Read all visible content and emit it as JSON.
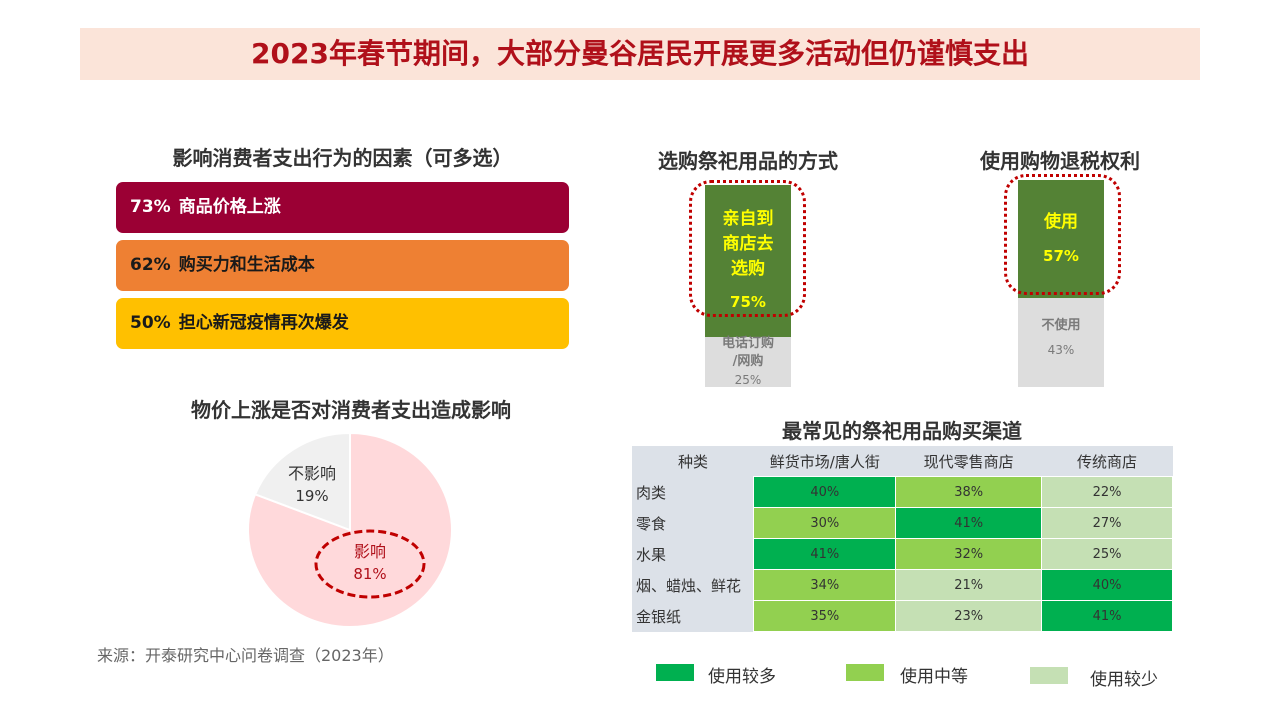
{
  "title": "2023年春节期间，大部分曼谷居民开展更多活动但仍谨慎支出",
  "factors": {
    "title": "影响消费者支出行为的因素（可多选）",
    "items": [
      {
        "pct": "73%",
        "label": "商品价格上涨",
        "color": "#9b0034"
      },
      {
        "pct": "62%",
        "label": "购买力和生活成本",
        "color": "#ee8033"
      },
      {
        "pct": "50%",
        "label": "担心新冠疫情再次爆发",
        "color": "#ffc000"
      }
    ]
  },
  "pie": {
    "title": "物价上涨是否对消费者支出造成影响",
    "slices": [
      {
        "label": "影响",
        "value_label": "81%",
        "value": 81,
        "color": "#ffd9db"
      },
      {
        "label": "不影响",
        "value_label": "19%",
        "value": 19,
        "color": "#f0f0f0"
      }
    ]
  },
  "purchase_method": {
    "title": "选购祭祀用品的方式",
    "top": {
      "label_lines": [
        "亲自到",
        "商店去",
        "选购"
      ],
      "value_label": "75%",
      "value": 75
    },
    "bottom": {
      "label_lines": [
        "电话订购",
        "/网购"
      ],
      "value_label": "25%",
      "value": 25
    }
  },
  "tax_refund": {
    "title": "使用购物退税权利",
    "top": {
      "label_lines": [
        "使用"
      ],
      "value_label": "57%",
      "value": 57
    },
    "bottom": {
      "label_lines": [
        "不使用"
      ],
      "value_label": "43%",
      "value": 43
    }
  },
  "channels": {
    "title": "最常见的祭祀用品购买渠道",
    "header": [
      "种类",
      "鲜货市场/唐人街",
      "现代零售商店",
      "传统商店"
    ],
    "rows": [
      {
        "category": "肉类",
        "cells": [
          {
            "v": "40%",
            "level": "high"
          },
          {
            "v": "38%",
            "level": "mid"
          },
          {
            "v": "22%",
            "level": "low"
          }
        ]
      },
      {
        "category": "零食",
        "cells": [
          {
            "v": "30%",
            "level": "mid"
          },
          {
            "v": "41%",
            "level": "high"
          },
          {
            "v": "27%",
            "level": "low"
          }
        ]
      },
      {
        "category": "水果",
        "cells": [
          {
            "v": "41%",
            "level": "high"
          },
          {
            "v": "32%",
            "level": "mid"
          },
          {
            "v": "25%",
            "level": "low"
          }
        ]
      },
      {
        "category": "烟、蜡烛、鲜花",
        "cells": [
          {
            "v": "34%",
            "level": "mid"
          },
          {
            "v": "21%",
            "level": "low"
          },
          {
            "v": "40%",
            "level": "high"
          }
        ]
      },
      {
        "category": "金银纸",
        "cells": [
          {
            "v": "35%",
            "level": "mid"
          },
          {
            "v": "23%",
            "level": "low"
          },
          {
            "v": "41%",
            "level": "high"
          }
        ]
      }
    ],
    "level_colors": {
      "high": "#00b050",
      "mid": "#92d050",
      "low": "#c5e0b4"
    }
  },
  "legend": [
    {
      "label": "使用较多",
      "color": "#00b050"
    },
    {
      "label": "使用中等",
      "color": "#92d050"
    },
    {
      "label": "使用较少",
      "color": "#c5e0b4"
    }
  ],
  "source": "来源：开泰研究中心问卷调查（2023年）",
  "chart_data": [
    {
      "type": "bar",
      "title": "影响消费者支出行为的因素（可多选）",
      "categories": [
        "商品价格上涨",
        "购买力和生活成本",
        "担心新冠疫情再次爆发"
      ],
      "values": [
        73,
        62,
        50
      ]
    },
    {
      "type": "pie",
      "title": "物价上涨是否对消费者支出造成影响",
      "categories": [
        "影响",
        "不影响"
      ],
      "values": [
        81,
        19
      ]
    },
    {
      "type": "bar",
      "title": "选购祭祀用品的方式",
      "categories": [
        "亲自到商店去选购",
        "电话订购/网购"
      ],
      "values": [
        75,
        25
      ]
    },
    {
      "type": "bar",
      "title": "使用购物退税权利",
      "categories": [
        "使用",
        "不使用"
      ],
      "values": [
        57,
        43
      ]
    },
    {
      "type": "table",
      "title": "最常见的祭祀用品购买渠道",
      "columns": [
        "鲜货市场/唐人街",
        "现代零售商店",
        "传统商店"
      ],
      "rows": [
        "肉类",
        "零食",
        "水果",
        "烟、蜡烛、鲜花",
        "金银纸"
      ],
      "values": [
        [
          40,
          38,
          22
        ],
        [
          30,
          41,
          27
        ],
        [
          41,
          32,
          25
        ],
        [
          34,
          21,
          40
        ],
        [
          35,
          23,
          41
        ]
      ]
    }
  ]
}
